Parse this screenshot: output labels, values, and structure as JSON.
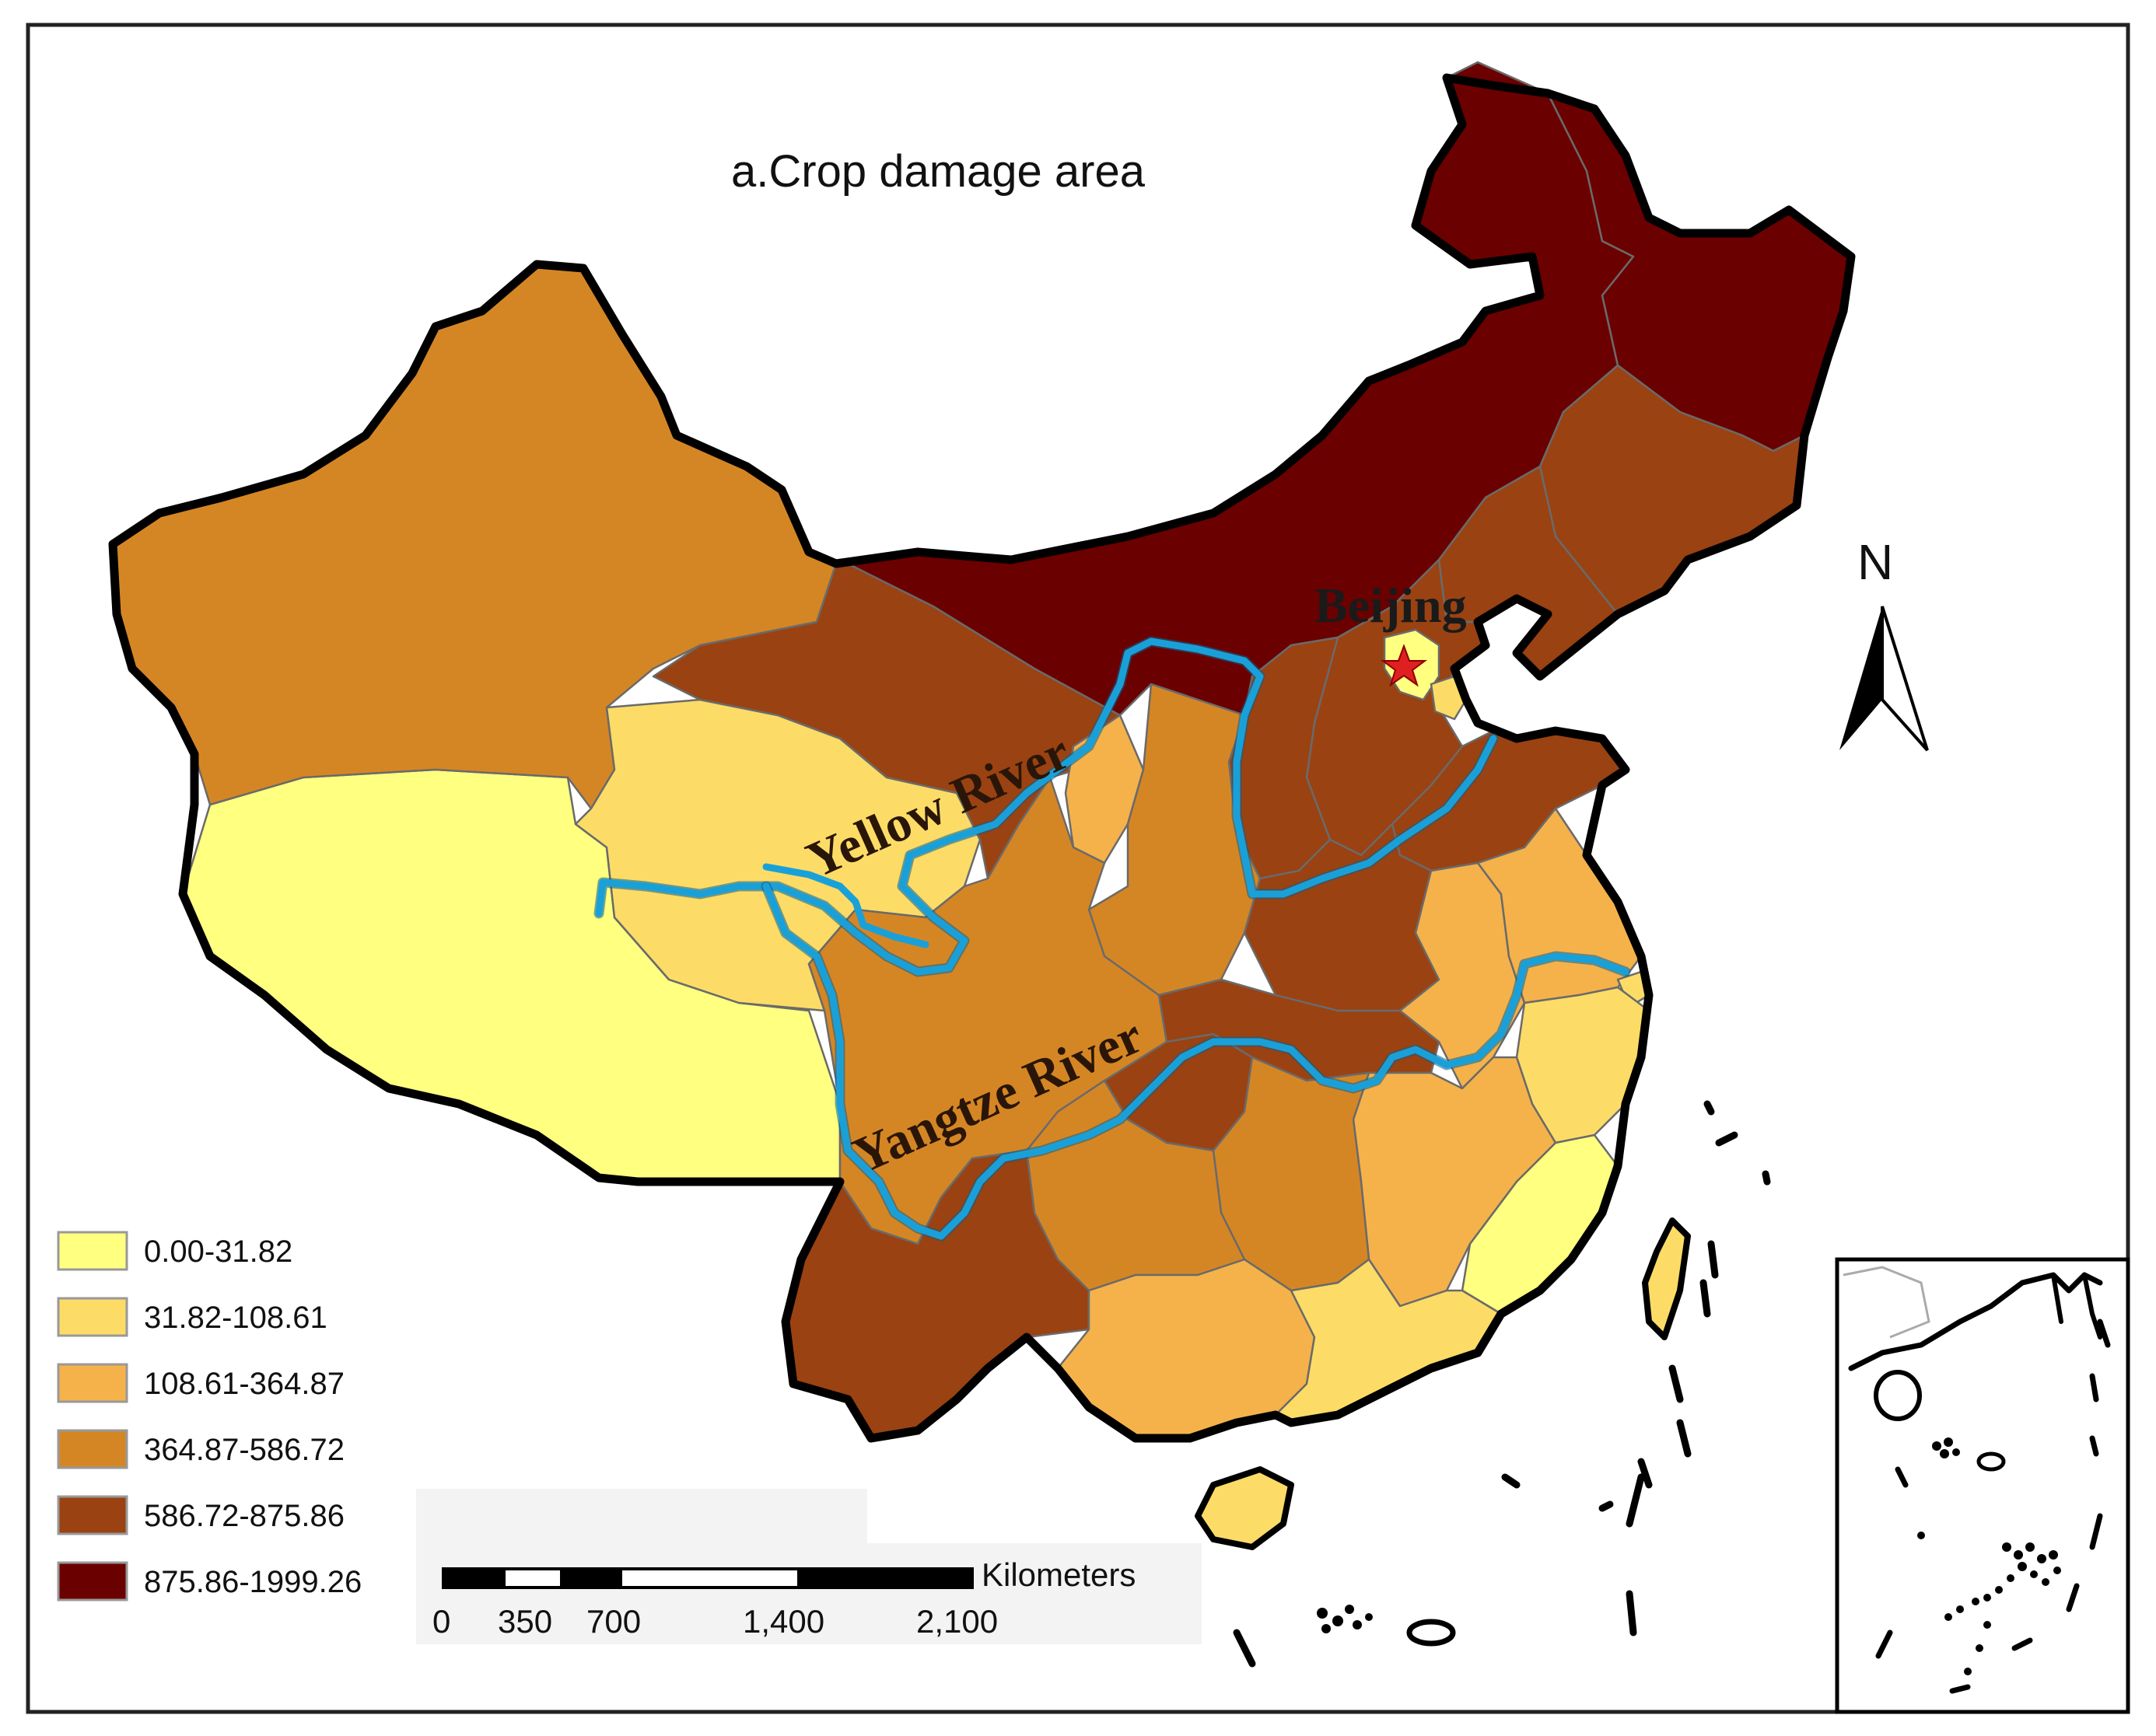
{
  "title": "a.Crop damage area",
  "colors": {
    "class1": "#ffff80",
    "class2": "#fcdc66",
    "class3": "#f5b24a",
    "class4": "#d58624",
    "class5": "#9a4212",
    "class6": "#6b0000",
    "river": "#1aa0d8",
    "capital_star": "#e02020"
  },
  "legend": {
    "items": [
      {
        "label": "0.00-31.82",
        "color": "#ffff80"
      },
      {
        "label": "31.82-108.61",
        "color": "#fcdc66"
      },
      {
        "label": "108.61-364.87",
        "color": "#f5b24a"
      },
      {
        "label": "364.87-586.72",
        "color": "#d58624"
      },
      {
        "label": "586.72-875.86",
        "color": "#9a4212"
      },
      {
        "label": "875.86-1999.26",
        "color": "#6b0000"
      }
    ]
  },
  "labels": {
    "yellow_river": "Yellow River",
    "yangtze_river": "Yangtze River",
    "capital": "Beijing"
  },
  "north_arrow": {
    "label": "N",
    "icon": "north-arrow-icon"
  },
  "scale_bar": {
    "unit": "Kilometers",
    "ticks": [
      "0",
      "350",
      "700",
      "1,400",
      "2,100"
    ]
  },
  "inset": {
    "description_icon": "south-china-sea-inset"
  }
}
